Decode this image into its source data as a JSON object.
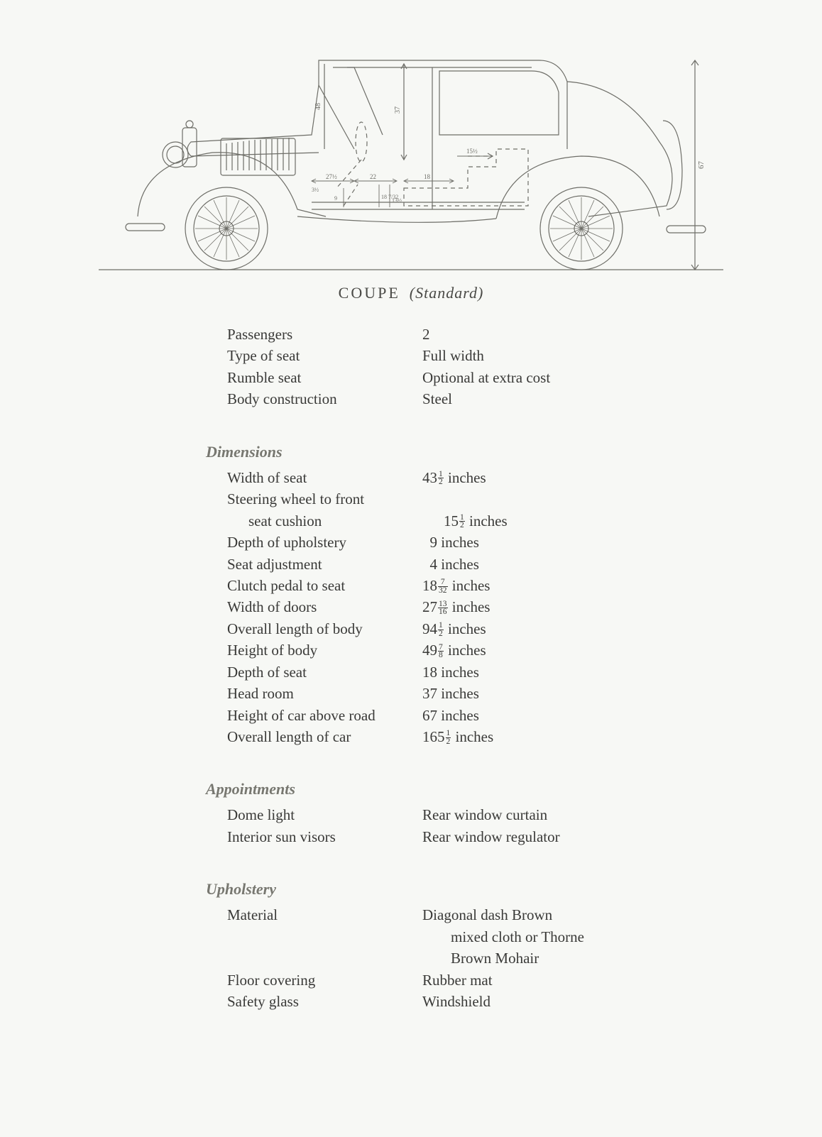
{
  "diagram": {
    "stroke": "#6e6e68",
    "stroke_width": 1.2,
    "background": "#f7f8f5",
    "fill": "none",
    "dash": "6,5",
    "caption_main": "COUPE",
    "caption_sub": "(Standard)",
    "overall_height_label": "67",
    "cabin_height_label": "48",
    "interior_height_label": "37",
    "dim_labels": {
      "a": "27½",
      "b": "22",
      "c": "18",
      "d": "15½",
      "e": "18 7/32",
      "f": "13½",
      "g": "9",
      "h": "3½"
    }
  },
  "header_rows": [
    {
      "label": "Passengers",
      "value": "2"
    },
    {
      "label": "Type of seat",
      "value": "Full width"
    },
    {
      "label": "Rumble seat",
      "value": "Optional at extra cost"
    },
    {
      "label": "Body construction",
      "value": "Steel"
    }
  ],
  "sections": [
    {
      "heading": "Dimensions",
      "rows": [
        {
          "label": "Width of seat",
          "whole": "43",
          "num": "1",
          "den": "2",
          "unit": "inches"
        },
        {
          "label": "Steering wheel to front",
          "continuation": true
        },
        {
          "label_indent": "seat cushion",
          "whole": "15",
          "num": "1",
          "den": "2",
          "unit": "inches"
        },
        {
          "label": "Depth of upholstery",
          "whole": "9",
          "unit": "inches",
          "pad": true
        },
        {
          "label": "Seat adjustment",
          "whole": "4",
          "unit": "inches",
          "pad": true
        },
        {
          "label": "Clutch pedal to seat",
          "whole": "18",
          "num": "7",
          "den": "32",
          "unit": "inches"
        },
        {
          "label": "Width of doors",
          "whole": "27",
          "num": "13",
          "den": "16",
          "unit": "inches"
        },
        {
          "label": "Overall length of body",
          "whole": "94",
          "num": "1",
          "den": "2",
          "unit": "inches"
        },
        {
          "label": "Height of body",
          "whole": "49",
          "num": "7",
          "den": "8",
          "unit": "inches"
        },
        {
          "label": "Depth of seat",
          "whole": "18",
          "unit": "inches"
        },
        {
          "label": "Head room",
          "whole": "37",
          "unit": "inches"
        },
        {
          "label": "Height of car above road",
          "whole": "67",
          "unit": "inches"
        },
        {
          "label": "Overall length of car",
          "whole": "165",
          "num": "1",
          "den": "2",
          "unit": "inches"
        }
      ]
    }
  ],
  "appointments": {
    "heading": "Appointments",
    "colA": [
      "Dome light",
      "Interior sun visors"
    ],
    "colB": [
      "Rear window curtain",
      "Rear window regulator"
    ]
  },
  "upholstery": {
    "heading": "Upholstery",
    "rows": [
      {
        "label": "Material",
        "value_lines": [
          "Diagonal dash Brown",
          "mixed cloth or Thorne",
          "Brown Mohair"
        ]
      },
      {
        "label": "Floor covering",
        "value_lines": [
          "Rubber mat"
        ]
      },
      {
        "label": "Safety glass",
        "value_lines": [
          "Windshield"
        ]
      }
    ]
  },
  "typography": {
    "body_fontsize": 21,
    "heading_fontsize": 22,
    "heading_color": "#777770",
    "text_color": "#3a3a38",
    "background_color": "#f7f8f5"
  }
}
